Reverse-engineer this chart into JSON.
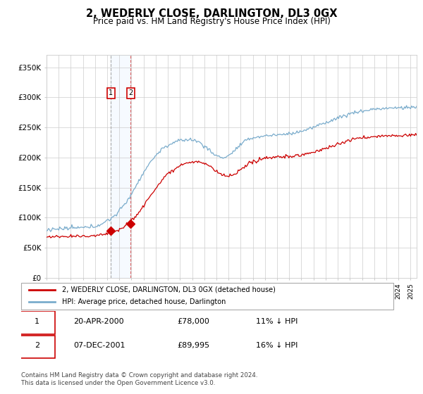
{
  "title": "2, WEDERLY CLOSE, DARLINGTON, DL3 0GX",
  "subtitle": "Price paid vs. HM Land Registry's House Price Index (HPI)",
  "ylabel_ticks": [
    "£0",
    "£50K",
    "£100K",
    "£150K",
    "£200K",
    "£250K",
    "£300K",
    "£350K"
  ],
  "ylim": [
    0,
    370000
  ],
  "yticks": [
    0,
    50000,
    100000,
    150000,
    200000,
    250000,
    300000,
    350000
  ],
  "sale1_date_num": 2000.31,
  "sale1_price": 78000,
  "sale2_date_num": 2001.93,
  "sale2_price": 89995,
  "red_line_color": "#cc0000",
  "blue_line_color": "#7aaccc",
  "shade_color": "#ddeeff",
  "legend_label_red": "2, WEDERLY CLOSE, DARLINGTON, DL3 0GX (detached house)",
  "legend_label_blue": "HPI: Average price, detached house, Darlington",
  "table_row1": [
    "1",
    "20-APR-2000",
    "£78,000",
    "11% ↓ HPI"
  ],
  "table_row2": [
    "2",
    "07-DEC-2001",
    "£89,995",
    "16% ↓ HPI"
  ],
  "footnote": "Contains HM Land Registry data © Crown copyright and database right 2024.\nThis data is licensed under the Open Government Licence v3.0.",
  "xlim_left": 1995.0,
  "xlim_right": 2025.5
}
